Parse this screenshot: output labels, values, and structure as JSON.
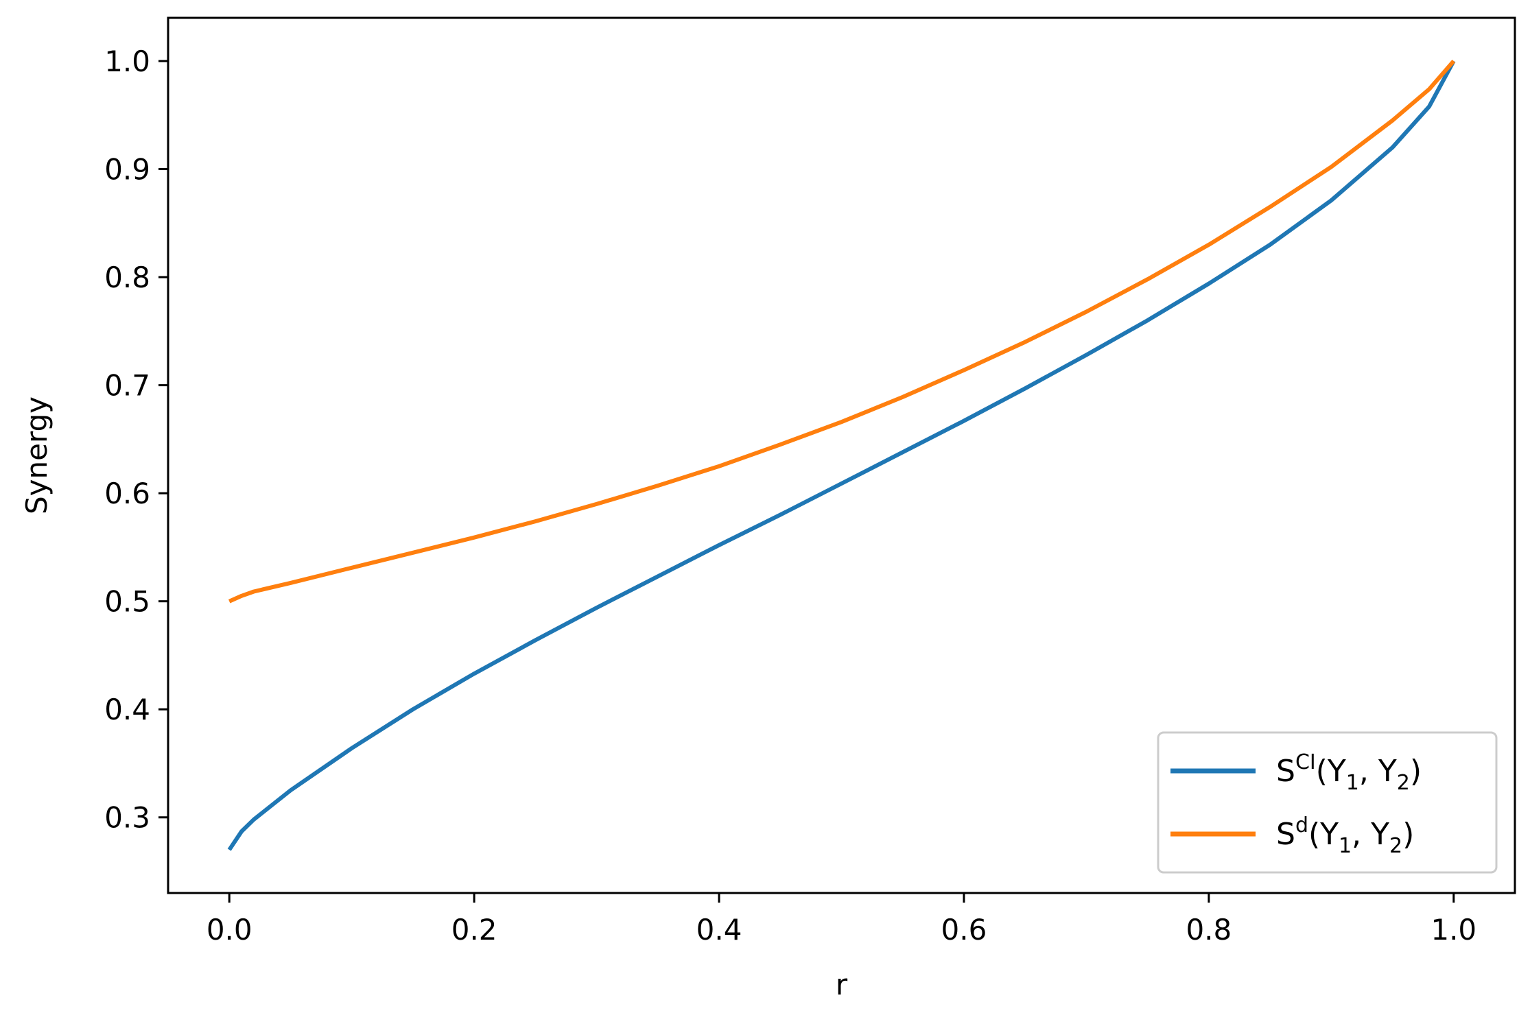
{
  "chart_data": {
    "type": "line",
    "title": "",
    "xlabel": "r",
    "ylabel": "Synergy",
    "xlim": [
      -0.05,
      1.05
    ],
    "ylim": [
      0.23,
      1.04
    ],
    "xticks": [
      0.0,
      0.2,
      0.4,
      0.6,
      0.8,
      1.0
    ],
    "xtick_labels": [
      "0.0",
      "0.2",
      "0.4",
      "0.6",
      "0.8",
      "1.0"
    ],
    "yticks": [
      0.3,
      0.4,
      0.5,
      0.6,
      0.7,
      0.8,
      0.9,
      1.0
    ],
    "ytick_labels": [
      "0.3",
      "0.4",
      "0.5",
      "0.6",
      "0.7",
      "0.8",
      "0.9",
      "1.0"
    ],
    "grid": false,
    "legend_position": "lower-right",
    "x": [
      0.0,
      0.01,
      0.02,
      0.05,
      0.1,
      0.15,
      0.2,
      0.25,
      0.3,
      0.35,
      0.4,
      0.45,
      0.5,
      0.55,
      0.6,
      0.65,
      0.7,
      0.75,
      0.8,
      0.85,
      0.9,
      0.95,
      0.98,
      1.0
    ],
    "series": [
      {
        "legend": {
          "base": "S",
          "sup": "CI",
          "open": "(Y",
          "sub1": "1",
          "mid": ", Y",
          "sub2": "2",
          "close": ")"
        },
        "color": "#1f77b4",
        "values": [
          0.27,
          0.287,
          0.298,
          0.325,
          0.364,
          0.4,
          0.433,
          0.464,
          0.494,
          0.523,
          0.552,
          0.58,
          0.609,
          0.638,
          0.667,
          0.697,
          0.728,
          0.76,
          0.794,
          0.83,
          0.871,
          0.92,
          0.958,
          1.0
        ]
      },
      {
        "legend": {
          "base": "S",
          "sup": "d",
          "open": "(Y",
          "sub1": "1",
          "mid": ", Y",
          "sub2": "2",
          "close": ")"
        },
        "color": "#ff7f0e",
        "values": [
          0.5,
          0.505,
          0.509,
          0.517,
          0.531,
          0.545,
          0.559,
          0.574,
          0.59,
          0.607,
          0.625,
          0.645,
          0.666,
          0.689,
          0.714,
          0.74,
          0.768,
          0.798,
          0.83,
          0.865,
          0.902,
          0.945,
          0.974,
          1.0
        ]
      }
    ]
  }
}
